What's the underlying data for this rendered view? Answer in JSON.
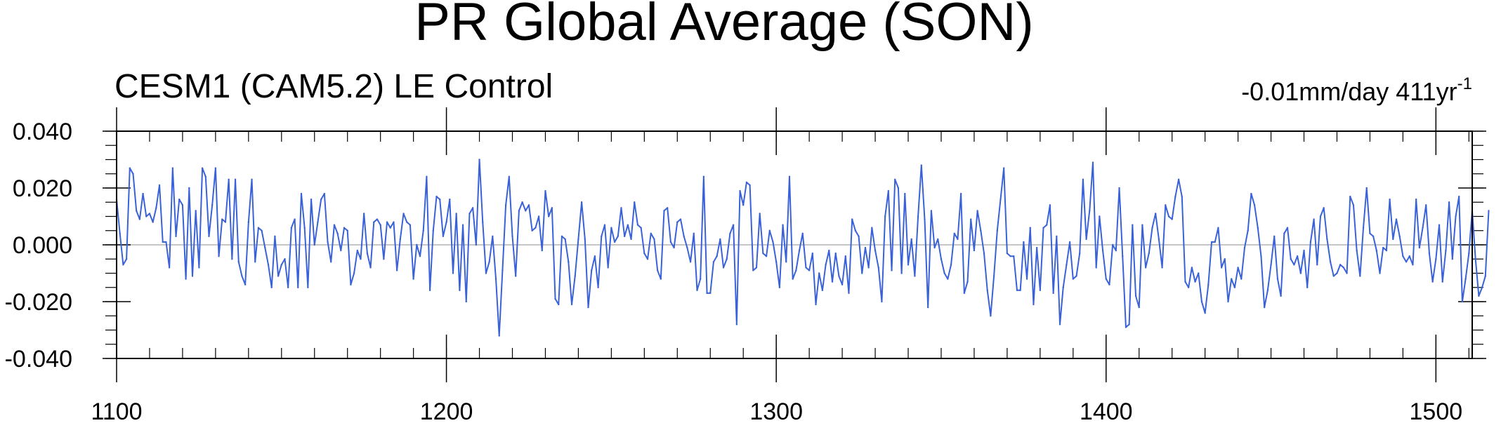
{
  "title": "PR Global Average (SON)",
  "subtitle": "CESM1 (CAM5.2) LE Control",
  "trend": {
    "text": "-0.01mm/day 411yr",
    "superscript": "-1"
  },
  "colors": {
    "series": "#3a62d8",
    "axis": "#000000",
    "zero_line": "#b4b4b4",
    "background": "#ffffff"
  },
  "chart_data": {
    "type": "line",
    "title": "PR Global Average (SON)",
    "subtitle": "CESM1 (CAM5.2) LE Control",
    "xlabel": "",
    "ylabel": "",
    "xlim": [
      1100,
      1511
    ],
    "ylim": [
      -0.04,
      0.04
    ],
    "x_ticks": [
      1100,
      1200,
      1300,
      1400,
      1500
    ],
    "x_tick_labels": [
      "1100",
      "1200",
      "1300",
      "1400",
      "1500"
    ],
    "y_ticks": [
      -0.04,
      -0.02,
      0.0,
      0.02,
      0.04
    ],
    "y_tick_labels": [
      "-0.040",
      "-0.020",
      "0.000",
      "0.020",
      "0.040"
    ],
    "grid": false,
    "reference_line": 0.0,
    "x_start": 1100,
    "x_step": 1,
    "series": [
      {
        "values": [
          0.016,
          0.004,
          -0.007,
          -0.005,
          0.027,
          0.025,
          0.012,
          0.009,
          0.018,
          0.01,
          0.011,
          0.008,
          0.013,
          0.021,
          0.001,
          0.001,
          -0.008,
          0.027,
          0.003,
          0.016,
          0.014,
          -0.012,
          0.02,
          -0.011,
          0.012,
          -0.008,
          0.027,
          0.024,
          0.003,
          0.014,
          0.027,
          -0.004,
          0.009,
          0.008,
          0.023,
          -0.005,
          0.023,
          -0.006,
          -0.011,
          -0.014,
          0.008,
          0.023,
          -0.006,
          0.006,
          0.005,
          -0.001,
          -0.007,
          -0.015,
          0.003,
          -0.011,
          -0.007,
          -0.005,
          -0.015,
          0.006,
          0.009,
          -0.015,
          0.018,
          0.006,
          -0.015,
          0.016,
          0.0,
          0.008,
          0.016,
          0.018,
          0.001,
          -0.006,
          0.007,
          0.004,
          -0.002,
          0.006,
          0.005,
          -0.014,
          -0.01,
          -0.002,
          -0.005,
          0.011,
          -0.003,
          -0.008,
          0.008,
          0.009,
          0.007,
          -0.005,
          0.008,
          0.006,
          0.008,
          -0.009,
          0.002,
          0.011,
          0.008,
          0.007,
          -0.012,
          0.0,
          -0.004,
          0.005,
          0.024,
          -0.016,
          0.005,
          0.017,
          0.016,
          0.003,
          0.008,
          0.016,
          -0.01,
          0.011,
          -0.016,
          0.007,
          -0.02,
          0.011,
          0.013,
          0.0,
          0.03,
          0.008,
          -0.01,
          -0.006,
          0.003,
          -0.012,
          -0.032,
          -0.009,
          0.014,
          0.024,
          0.003,
          -0.011,
          0.012,
          0.015,
          0.012,
          0.014,
          0.005,
          0.006,
          0.01,
          -0.002,
          0.019,
          0.01,
          0.013,
          -0.019,
          -0.021,
          0.003,
          0.002,
          -0.006,
          -0.021,
          -0.011,
          0.002,
          0.015,
          0.002,
          -0.022,
          -0.009,
          -0.004,
          -0.015,
          0.003,
          0.007,
          -0.008,
          0.006,
          0.001,
          0.003,
          0.013,
          0.003,
          0.007,
          0.002,
          0.015,
          0.007,
          0.006,
          -0.003,
          -0.005,
          0.004,
          0.002,
          -0.009,
          -0.012,
          0.012,
          0.013,
          0.001,
          -0.001,
          0.008,
          0.009,
          0.003,
          -0.001,
          -0.006,
          0.004,
          -0.016,
          -0.012,
          0.024,
          -0.017,
          -0.017,
          -0.006,
          -0.004,
          0.002,
          -0.008,
          -0.005,
          0.004,
          0.007,
          -0.028,
          0.019,
          0.014,
          0.022,
          0.021,
          -0.009,
          -0.008,
          0.011,
          -0.003,
          -0.004,
          0.005,
          0.001,
          -0.006,
          -0.015,
          0.007,
          -0.006,
          0.024,
          -0.012,
          -0.009,
          -0.002,
          0.004,
          -0.008,
          -0.009,
          -0.003,
          -0.021,
          -0.01,
          -0.016,
          -0.007,
          -0.002,
          -0.013,
          -0.003,
          -0.011,
          -0.014,
          -0.004,
          -0.017,
          0.009,
          0.005,
          0.003,
          -0.01,
          -0.001,
          -0.008,
          0.006,
          -0.002,
          -0.008,
          -0.02,
          0.01,
          0.019,
          -0.009,
          0.023,
          0.02,
          -0.01,
          0.018,
          -0.007,
          0.002,
          -0.011,
          0.01,
          0.028,
          0.009,
          -0.022,
          0.012,
          -0.001,
          0.002,
          -0.005,
          -0.01,
          -0.012,
          -0.007,
          0.004,
          0.002,
          0.018,
          -0.017,
          -0.013,
          0.009,
          -0.002,
          0.012,
          0.005,
          -0.003,
          -0.016,
          -0.025,
          -0.011,
          0.005,
          0.016,
          0.027,
          -0.003,
          -0.004,
          -0.004,
          -0.016,
          -0.016,
          0.001,
          -0.012,
          0.006,
          -0.021,
          -0.001,
          -0.016,
          0.006,
          0.007,
          0.014,
          -0.017,
          0.003,
          -0.028,
          -0.015,
          -0.007,
          0.001,
          -0.012,
          -0.011,
          -0.003,
          0.023,
          0.002,
          0.012,
          0.029,
          -0.008,
          0.01,
          -0.002,
          -0.012,
          -0.014,
          0.0,
          -0.002,
          0.02,
          -0.004,
          -0.029,
          -0.028,
          0.007,
          -0.018,
          -0.022,
          0.007,
          -0.008,
          -0.003,
          0.006,
          0.011,
          0.002,
          -0.008,
          0.014,
          0.01,
          0.009,
          0.017,
          0.023,
          0.017,
          -0.013,
          -0.015,
          -0.008,
          -0.013,
          -0.01,
          -0.02,
          -0.024,
          -0.014,
          0.001,
          0.001,
          0.006,
          -0.008,
          -0.005,
          -0.02,
          -0.012,
          -0.015,
          -0.008,
          -0.012,
          -0.001,
          0.005,
          0.018,
          0.014,
          0.006,
          -0.004,
          -0.022,
          -0.016,
          -0.007,
          0.003,
          -0.012,
          -0.018,
          0.004,
          0.006,
          -0.005,
          -0.007,
          -0.004,
          -0.01,
          -0.002,
          -0.015,
          0.001,
          0.009,
          -0.007,
          0.01,
          0.013,
          0.002,
          -0.006,
          -0.011,
          -0.01,
          -0.007,
          -0.008,
          -0.01,
          0.017,
          0.014,
          -0.002,
          -0.011,
          0.006,
          0.02,
          0.004,
          0.003,
          -0.002,
          -0.01,
          -0.001,
          -0.002,
          0.016,
          0.002,
          0.009,
          0.003,
          -0.004,
          -0.006,
          -0.004,
          -0.007,
          0.016,
          -0.001,
          0.006,
          0.014,
          -0.003,
          -0.013,
          -0.005,
          0.007,
          -0.013,
          -0.002,
          0.015,
          -0.005,
          0.01,
          0.017,
          -0.02,
          -0.012,
          -0.003,
          0.012,
          -0.005,
          -0.018,
          -0.015,
          -0.011,
          0.012
        ]
      }
    ]
  }
}
